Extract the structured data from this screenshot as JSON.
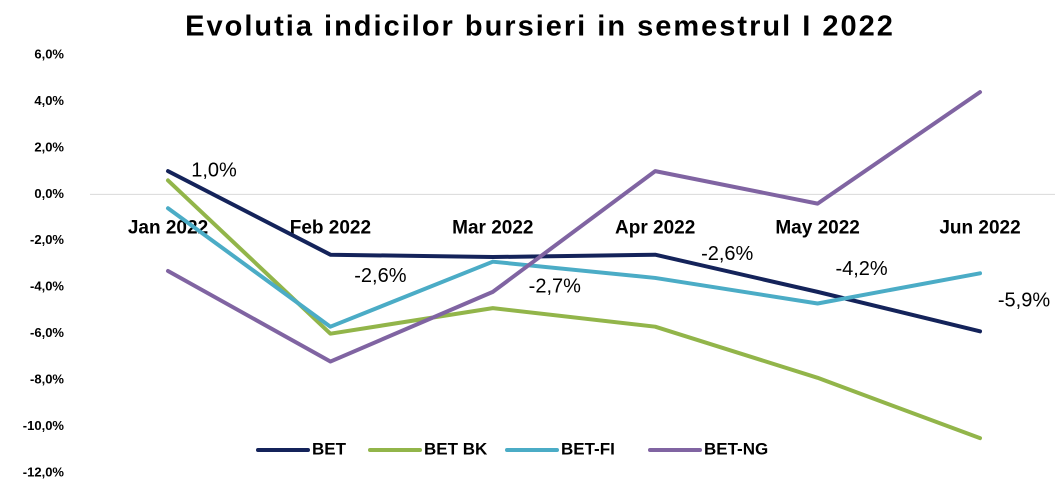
{
  "chart_data": {
    "type": "line",
    "title": "Evolutia indicilor bursieri in semestrul I 2022",
    "categories": [
      "Jan 2022",
      "Feb 2022",
      "Mar 2022",
      "Apr 2022",
      "May 2022",
      "Jun 2022"
    ],
    "series": [
      {
        "name": "BET",
        "color": "#14235a",
        "values": [
          1.0,
          -2.6,
          -2.7,
          -2.6,
          -4.2,
          -5.9
        ],
        "value_labels": [
          "1,0%",
          "-2,6%",
          "-2,7%",
          "-2,6%",
          "-4,2%",
          "-5,9%"
        ]
      },
      {
        "name": "BET BK",
        "color": "#92b54a",
        "values": [
          0.6,
          -6.0,
          -4.9,
          -5.7,
          -7.9,
          -10.5
        ]
      },
      {
        "name": "BET-FI",
        "color": "#4bacc6",
        "values": [
          -0.6,
          -5.7,
          -2.9,
          -3.6,
          -4.7,
          -3.4
        ]
      },
      {
        "name": "BET-NG",
        "color": "#8064a2",
        "values": [
          -3.3,
          -7.2,
          -4.2,
          1.0,
          -0.4,
          4.4
        ]
      }
    ],
    "ylim": [
      -12,
      6
    ],
    "yticks": [
      {
        "value": -12,
        "label": "-12,0%"
      },
      {
        "value": -10,
        "label": "-10,0%"
      },
      {
        "value": -8,
        "label": "-8,0%"
      },
      {
        "value": -6,
        "label": "-6,0%"
      },
      {
        "value": -4,
        "label": "-4,0%"
      },
      {
        "value": -2,
        "label": "-2,0%"
      },
      {
        "value": 0,
        "label": "0,0%"
      },
      {
        "value": 2,
        "label": "2,0%"
      },
      {
        "value": 4,
        "label": "4,0%"
      },
      {
        "value": 6,
        "label": "6,0%"
      }
    ],
    "legend": "bottom"
  }
}
